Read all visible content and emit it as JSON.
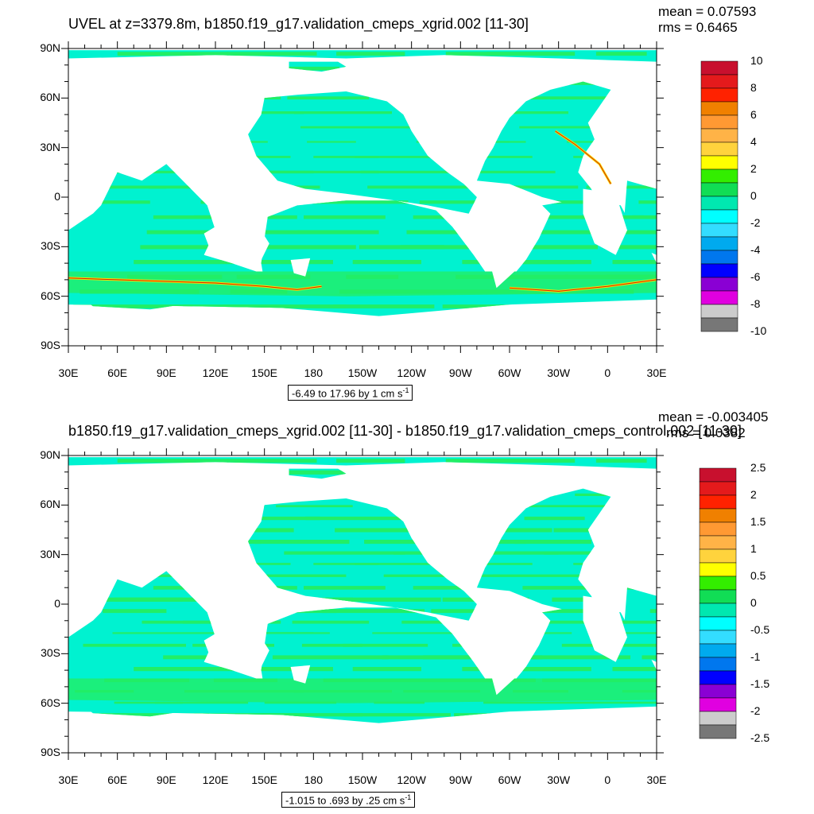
{
  "panels": [
    {
      "id": "top",
      "title": "UVEL at z=3379.8m, b1850.f19_g17.validation_cmeps_xgrid.002 [11-30]",
      "mean_label": "mean = 0.07593",
      "rms_label": "rms = 0.6465",
      "range_label": "-6.49 to 17.96 by 1 cm s",
      "range_sup": "-1",
      "colorbar": {
        "labels": [
          "10",
          "8",
          "6",
          "4",
          "2",
          "0",
          "-2",
          "-4",
          "-6",
          "-8",
          "-10"
        ],
        "colors": [
          "#c8102e",
          "#e41a1c",
          "#ff2200",
          "#f08000",
          "#ff9933",
          "#ffb347",
          "#ffd33d",
          "#ffff00",
          "#33ee00",
          "#11dd55",
          "#00e8b0",
          "#00ffff",
          "#33ddff",
          "#00aaee",
          "#0077ee",
          "#0000ff",
          "#8a00d4",
          "#e000e0",
          "#cccccc",
          "#777777"
        ]
      }
    },
    {
      "id": "bottom",
      "title": "b1850.f19_g17.validation_cmeps_xgrid.002 [11-30] - b1850.f19_g17.validation_cmeps_control.002 [11-30]",
      "mean_label": "mean = -0.003405",
      "rms_label": "rms = 0.0382",
      "range_label": "-1.015 to .693 by .25 cm s",
      "range_sup": "-1",
      "colorbar": {
        "labels": [
          "2.5",
          "2",
          "1.5",
          "1",
          "0.5",
          "0",
          "-0.5",
          "-1",
          "-1.5",
          "-2",
          "-2.5"
        ],
        "colors": [
          "#c8102e",
          "#e41a1c",
          "#ff2200",
          "#f08000",
          "#ff9933",
          "#ffb347",
          "#ffd33d",
          "#ffff00",
          "#33ee00",
          "#11dd55",
          "#00e8b0",
          "#00ffff",
          "#33ddff",
          "#00aaee",
          "#0077ee",
          "#0000ff",
          "#8a00d4",
          "#e000e0",
          "#cccccc",
          "#777777"
        ]
      }
    }
  ],
  "chart_data": {
    "type": "heatmap",
    "description_free": true,
    "xlabels": [
      "30E",
      "60E",
      "90E",
      "120E",
      "150E",
      "180",
      "150W",
      "120W",
      "90W",
      "60W",
      "30W",
      "0",
      "30E"
    ],
    "ylabels": [
      "90N",
      "60N",
      "30N",
      "0",
      "30S",
      "60S",
      "90S"
    ],
    "xlim": [
      30,
      390
    ],
    "ylim": [
      -90,
      90
    ],
    "field_colors": {
      "ocean_main": "#00f2d0",
      "ocean_secondary": "#22ee66",
      "jet": "#ffdd00",
      "jet_core": "#cc2200",
      "land": "#ffffff"
    }
  }
}
